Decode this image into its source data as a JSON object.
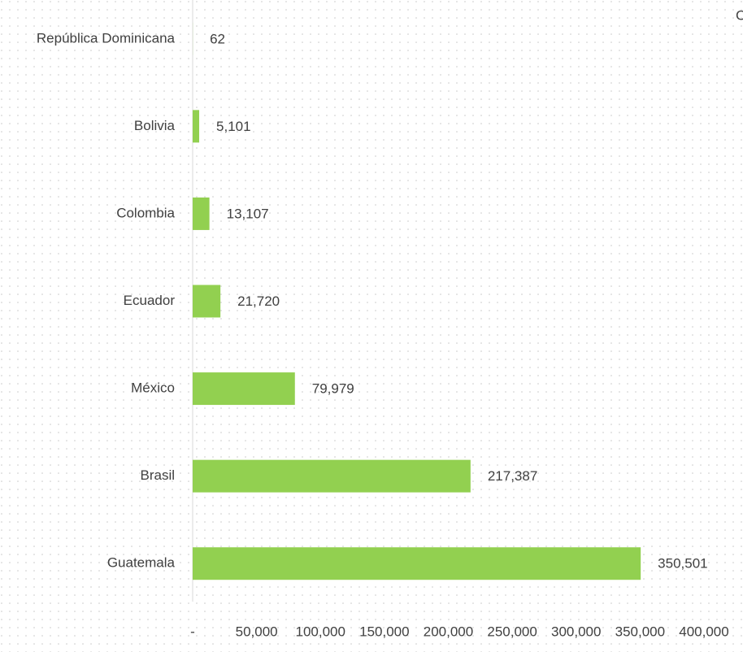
{
  "chart_data": {
    "type": "bar",
    "orientation": "horizontal",
    "title": "C",
    "categories": [
      "República Dominicana",
      "Bolivia",
      "Colombia",
      "Ecuador",
      "México",
      "Brasil",
      "Guatemala"
    ],
    "values": [
      62,
      5101,
      13107,
      21720,
      79979,
      217387,
      350501
    ],
    "value_labels": [
      "62",
      "5,101",
      "13,107",
      "21,720",
      "79,979",
      "217,387",
      "350,501"
    ],
    "color": "#92d050",
    "xlim": [
      0,
      400000
    ],
    "xticks": [
      {
        "value": 0,
        "label": "-"
      },
      {
        "value": 50000,
        "label": "50,000"
      },
      {
        "value": 100000,
        "label": "100,000"
      },
      {
        "value": 150000,
        "label": "150,000"
      },
      {
        "value": 200000,
        "label": "200,000"
      },
      {
        "value": 250000,
        "label": "250,000"
      },
      {
        "value": 300000,
        "label": "300,000"
      },
      {
        "value": 350000,
        "label": "350,000"
      },
      {
        "value": 400000,
        "label": "400,000"
      }
    ]
  }
}
